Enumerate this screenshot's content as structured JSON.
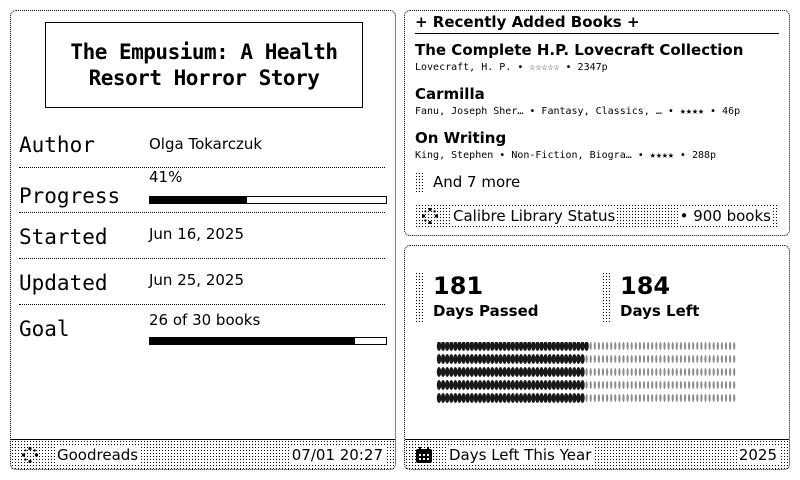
{
  "book": {
    "title": "The Empusium: A Health Resort Horror Story",
    "fields": [
      {
        "label": "Author",
        "value": "Olga Tokarczuk"
      },
      {
        "label": "Progress",
        "value": "41%",
        "progress": 0.41
      },
      {
        "label": "Started",
        "value": "Jun 16, 2025"
      },
      {
        "label": "Updated",
        "value": "Jun 25, 2025"
      },
      {
        "label": "Goal",
        "value": "26 of 30 books",
        "progress": 0.8667
      }
    ]
  },
  "left_footer": {
    "source": "Goodreads",
    "time": "07/01 20:27",
    "icon": "sync-icon"
  },
  "recent": {
    "header": "+ Recently Added Books +",
    "books": [
      {
        "title": "The Complete H.P. Lovecraft Collection",
        "meta": "Lovecraft, H. P. • ☆☆☆☆☆ • 2347p"
      },
      {
        "title": "Carmilla",
        "meta": "Fanu, Joseph Sher… • Fantasy, Classics, … • ★★★★ • 46p"
      },
      {
        "title": "On Writing",
        "meta": "King, Stephen • Non-Fiction, Biogra… • ★★★★ • 288p"
      }
    ],
    "more": "And 7 more"
  },
  "library_status": {
    "label": "Calibre Library Status",
    "count": "• 900 books",
    "icon": "sync-icon"
  },
  "days": {
    "passed": "181",
    "passed_label": "Days Passed",
    "left": "184",
    "left_label": "Days Left",
    "footer_label": "Days Left This Year",
    "year": "2025",
    "icon": "calendar-icon",
    "total_days": 365,
    "passed_count": 181
  }
}
